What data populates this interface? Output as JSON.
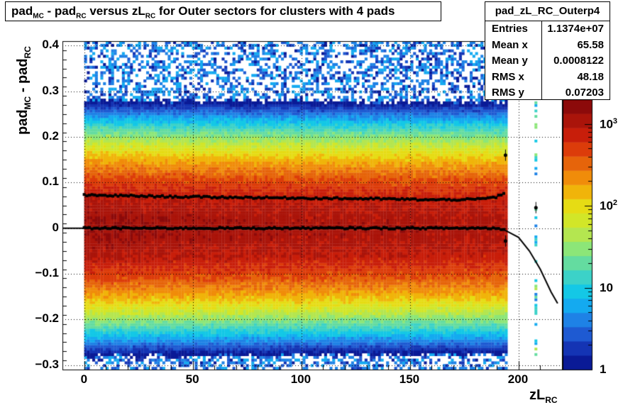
{
  "title": {
    "main_prefix": "pad",
    "sub1": "MC",
    "mid": " - pad",
    "sub2": "RC",
    "mid2": " versus zL",
    "sub3": "RC",
    "suffix": " for Outer sectors for clusters with 4 pads"
  },
  "stats": {
    "name": "pad_zL_RC_Outerp4",
    "rows": [
      {
        "key": "Entries",
        "value": "1.1374e+07"
      },
      {
        "key": "Mean x",
        "value": "65.58"
      },
      {
        "key": "Mean y",
        "value": "0.0008122"
      },
      {
        "key": "RMS x",
        "value": "48.18"
      },
      {
        "key": "RMS y",
        "value": "0.07203"
      }
    ]
  },
  "axis_labels": {
    "x_main": "zL",
    "x_sub": "RC",
    "y_part1": "pad",
    "y_sub1": "MC",
    "y_part2": " - pad",
    "y_sub2": "RC"
  },
  "x_ticks": [
    "0",
    "50",
    "100",
    "150",
    "200"
  ],
  "y_ticks": [
    "0.4",
    "0.3",
    "0.2",
    "0.1",
    "0",
    "−0.1",
    "−0.2",
    "−0.3"
  ],
  "z_ticks": [
    "1",
    "10",
    "10",
    "10"
  ],
  "z_tick_exponents": [
    "",
    "",
    "2",
    "3"
  ],
  "palette": [
    "#0a1a96",
    "#1434b4",
    "#1e5ad2",
    "#1e82e6",
    "#14aaf0",
    "#14c8e6",
    "#3cd2c8",
    "#64dca0",
    "#8ce678",
    "#b4e650",
    "#d2e628",
    "#e6dc14",
    "#f0b40a",
    "#f08c0a",
    "#e6640a",
    "#dc3c0a",
    "#c81e0a",
    "#aa140a",
    "#8c0a0a"
  ],
  "chart_data": {
    "type": "heatmap",
    "title": "pad_MC - pad_RC versus zL_RC for Outer sectors for clusters with 4 pads",
    "xlabel": "zL_RC",
    "ylabel": "pad_MC - pad_RC",
    "xlim": [
      -10,
      220
    ],
    "ylim": [
      -0.31,
      0.41
    ],
    "zscale": "log",
    "zlim": [
      1,
      2000
    ],
    "grid": true,
    "density_model": {
      "x_range": [
        0,
        194
      ],
      "peak_counts": 2000,
      "sigma_y": 0.072
    },
    "series": [
      {
        "name": "mean",
        "x": [
          0,
          20,
          40,
          60,
          80,
          100,
          120,
          140,
          160,
          180,
          190,
          194,
          200,
          205,
          210,
          215,
          218
        ],
        "values": [
          0.0,
          0.0,
          0.0,
          0.0,
          0.0,
          0.0,
          0.0,
          0.0,
          0.0,
          0.0,
          0.0,
          -0.005,
          -0.02,
          -0.05,
          -0.09,
          -0.14,
          -0.165
        ]
      },
      {
        "name": "rms",
        "x": [
          0,
          20,
          40,
          60,
          80,
          100,
          120,
          140,
          160,
          180,
          190,
          194
        ],
        "values": [
          0.072,
          0.071,
          0.069,
          0.068,
          0.067,
          0.066,
          0.065,
          0.064,
          0.062,
          0.063,
          0.068,
          0.08
        ]
      }
    ],
    "outlier_points": [
      {
        "x": 194,
        "y": 0.16
      },
      {
        "x": 194,
        "y": -0.028
      },
      {
        "x": 208,
        "y": 0.045
      }
    ]
  }
}
